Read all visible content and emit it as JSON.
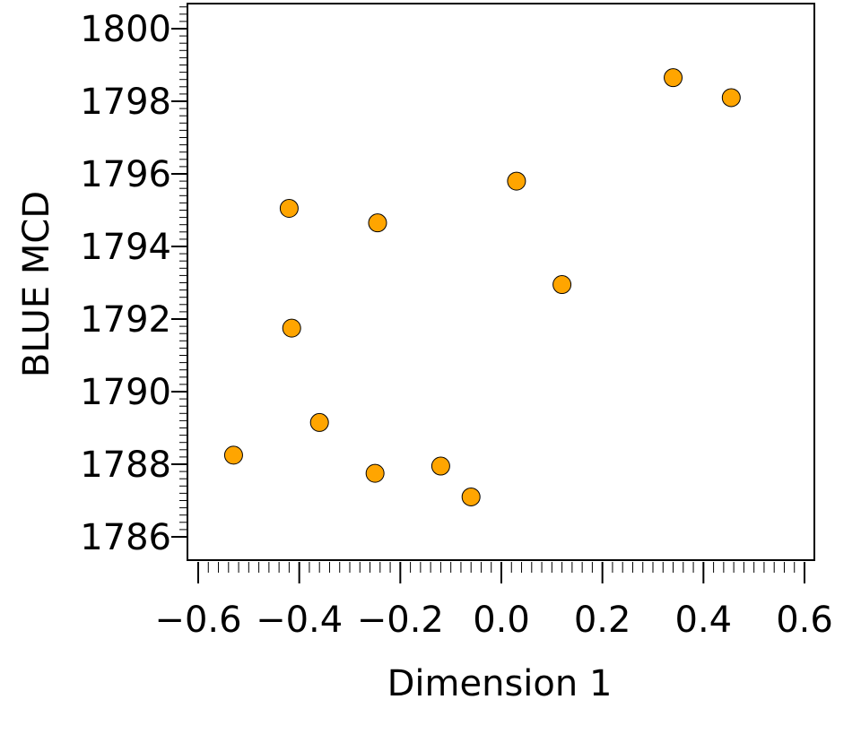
{
  "chart_data": {
    "type": "scatter",
    "xlabel": "Dimension 1",
    "ylabel": "BLUE MCD",
    "xlim": [
      -0.6,
      0.6
    ],
    "ylim": [
      1785,
      1800.7
    ],
    "x_ticks": [
      "-0.6",
      "-0.4",
      "-0.2",
      "0.0",
      "0.2",
      "0.4",
      "0.6"
    ],
    "y_ticks": [
      "1786",
      "1788",
      "1790",
      "1792",
      "1794",
      "1796",
      "1798",
      "1800"
    ],
    "grid": false,
    "marker_color": "#FFA500",
    "series": [
      {
        "x": [
          -0.53,
          -0.42,
          -0.415,
          -0.36,
          -0.25,
          -0.245,
          -0.12,
          -0.06,
          0.03,
          0.12,
          0.34,
          0.455
        ],
        "y": [
          1788.25,
          1795.05,
          1791.75,
          1789.15,
          1787.75,
          1794.65,
          1787.95,
          1787.1,
          1795.8,
          1792.95,
          1798.65,
          1798.1
        ]
      }
    ]
  }
}
